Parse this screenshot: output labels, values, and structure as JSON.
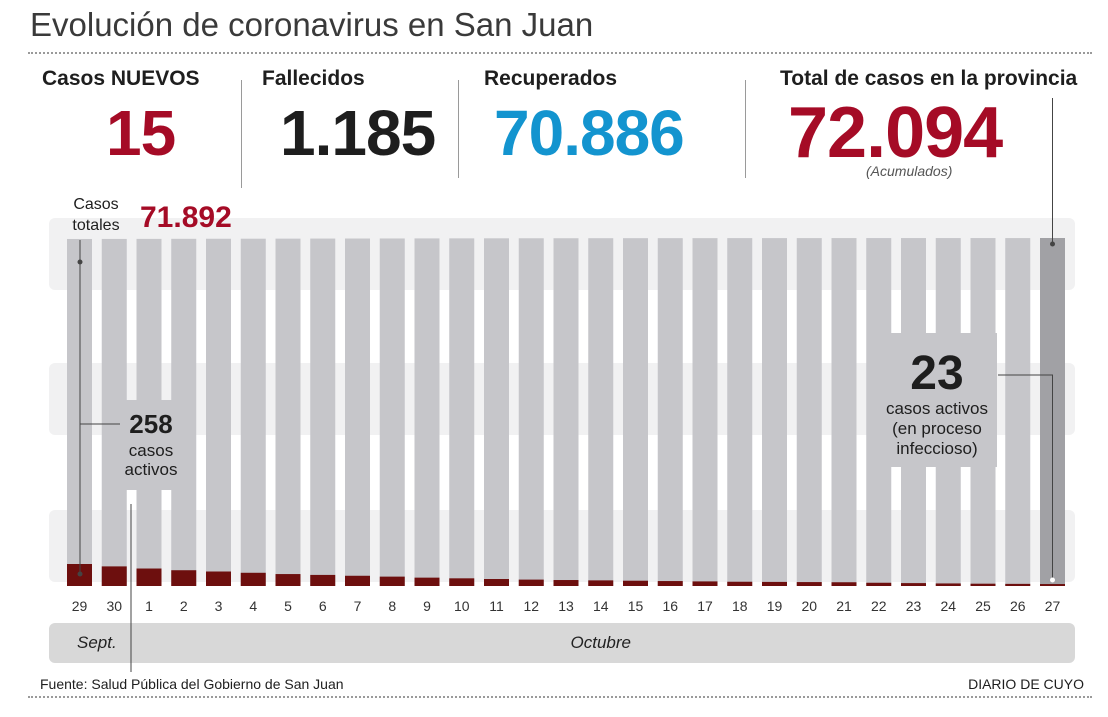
{
  "title": "Evolución de coronavirus en San Juan",
  "stats": {
    "nuevos_label": "Casos NUEVOS",
    "nuevos_value": "15",
    "fallecidos_label": "Fallecidos",
    "fallecidos_value": "1.185",
    "recuperados_label": "Recuperados",
    "recuperados_value": "70.886",
    "total_label": "Total de casos en la provincia",
    "total_value": "72.094",
    "total_note": "(Acumulados)"
  },
  "colors": {
    "red": "#a50b26",
    "blue": "#1394cf",
    "dark": "#1e1e1e",
    "bar_total": "#c6c6ca",
    "bar_total_last": "#a1a1a5",
    "bar_active": "#6d0f0e",
    "band": "#f1f1f2",
    "month_bar": "#d8d8d8"
  },
  "chart_data": {
    "type": "bar",
    "title": "",
    "xlabel": "",
    "ylabel": "",
    "categories": [
      "29",
      "30",
      "1",
      "2",
      "3",
      "4",
      "5",
      "6",
      "7",
      "8",
      "9",
      "10",
      "11",
      "12",
      "13",
      "14",
      "15",
      "16",
      "17",
      "18",
      "19",
      "20",
      "21",
      "22",
      "23",
      "24",
      "25",
      "26",
      "27"
    ],
    "month_labels": [
      {
        "label": "Sept.",
        "from": "29",
        "to": "30"
      },
      {
        "label": "Octubre",
        "from": "1",
        "to": "27"
      }
    ],
    "series": [
      {
        "name": "Casos totales",
        "values": [
          71892,
          71902,
          71913,
          71925,
          71938,
          71950,
          71962,
          71975,
          71988,
          72000,
          72012,
          72022,
          72032,
          72040,
          72046,
          72052,
          72058,
          72063,
          72067,
          72071,
          72074,
          72077,
          72079,
          72080,
          72082,
          72084,
          72086,
          72079,
          72094
        ]
      },
      {
        "name": "casos activos",
        "values": [
          258,
          230,
          205,
          185,
          170,
          155,
          140,
          130,
          120,
          110,
          98,
          90,
          82,
          75,
          70,
          66,
          62,
          58,
          54,
          50,
          48,
          46,
          44,
          38,
          34,
          30,
          27,
          25,
          23
        ]
      }
    ],
    "ylim": [
      0,
      72094
    ],
    "annotations": {
      "start_total_label": "Casos totales",
      "start_total_value": "71.892",
      "start_active_value": "258",
      "start_active_label": "casos activos",
      "end_active_value": "23",
      "end_active_label": "casos activos (en proceso infeccioso)"
    },
    "grid": false
  },
  "footer": {
    "source": "Fuente: Salud Pública del Gobierno de San Juan",
    "credit": "DIARIO DE CUYO"
  }
}
